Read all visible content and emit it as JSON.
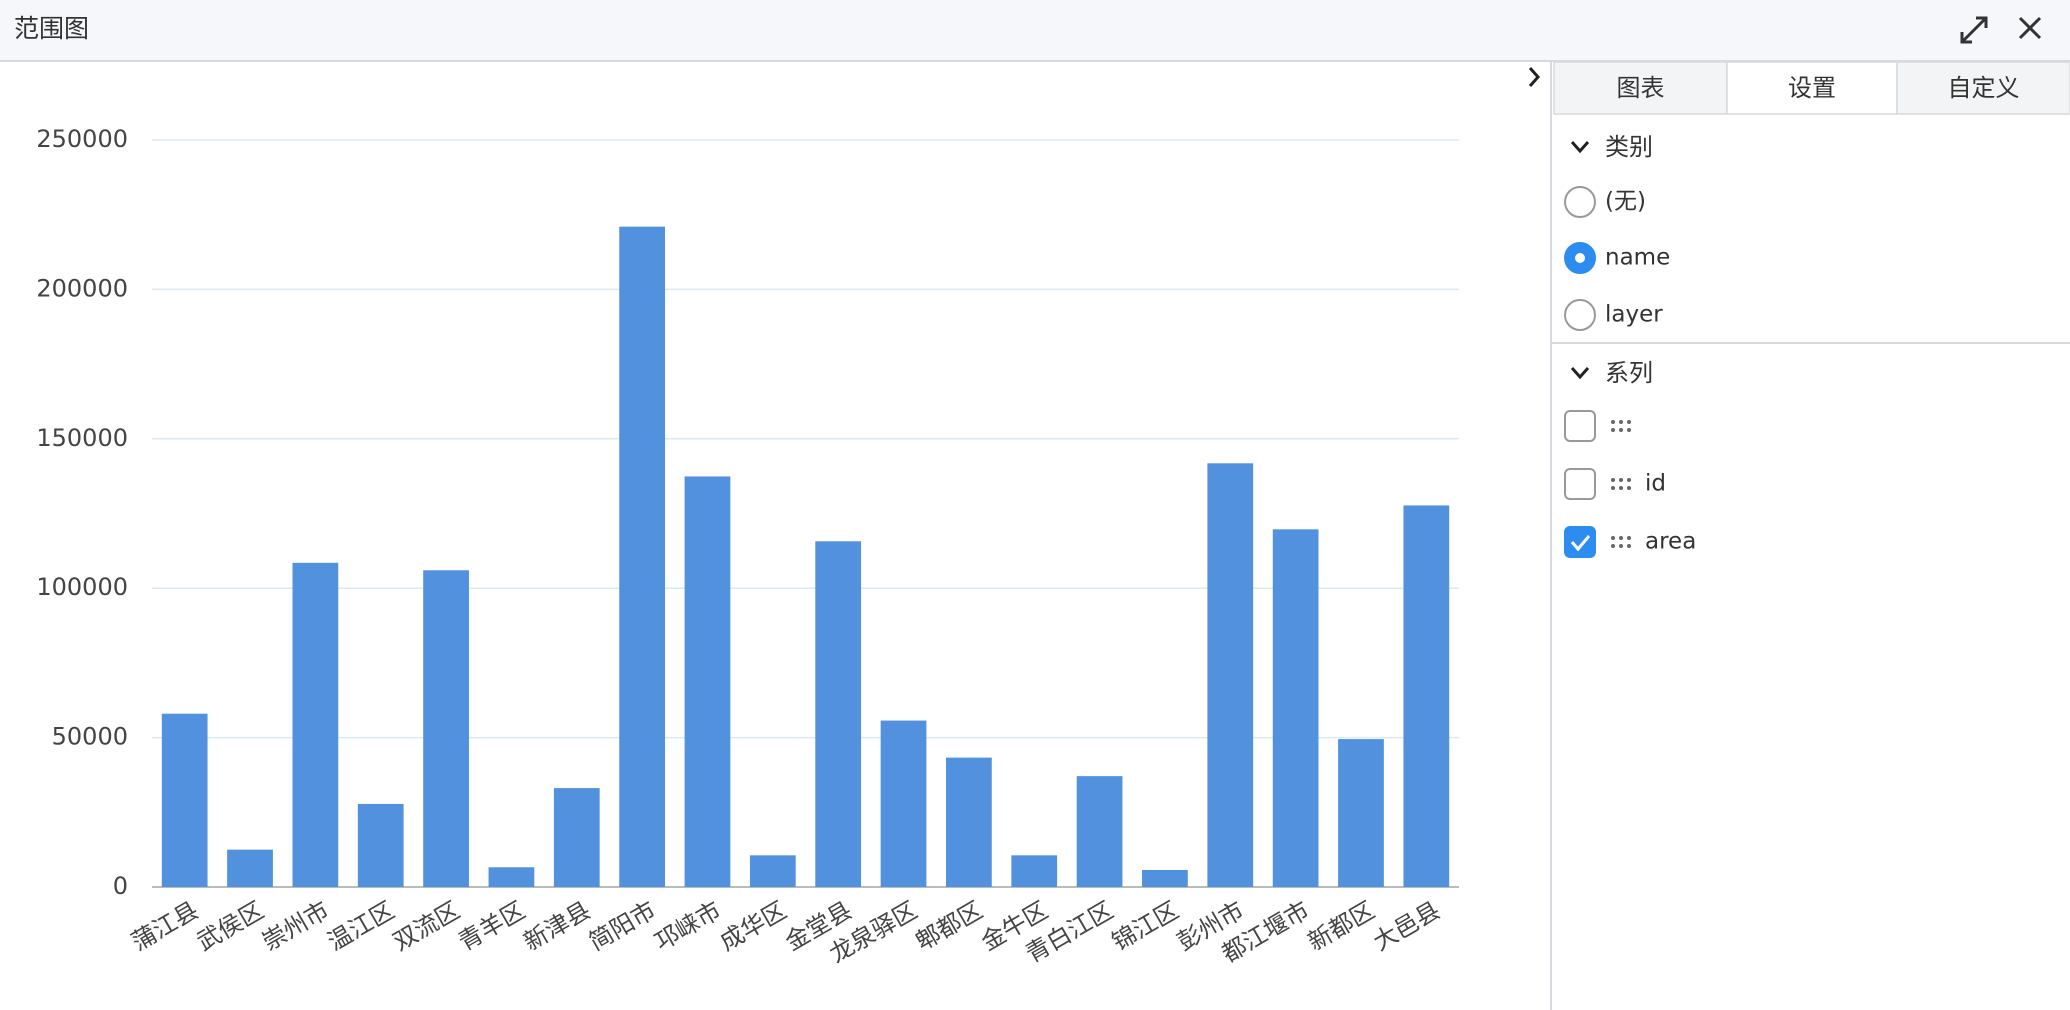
{
  "chart_data": {
    "type": "bar",
    "title": "范围图",
    "categories": [
      "蒲江县",
      "武侯区",
      "崇州市",
      "温江区",
      "双流区",
      "青羊区",
      "新津县",
      "简阳市",
      "邛崃市",
      "成华区",
      "金堂县",
      "龙泉驿区",
      "郫都区",
      "金牛区",
      "青白江区",
      "锦江区",
      "彭州市",
      "都江堰市",
      "新都区",
      "大邑县"
    ],
    "values": [
      58000,
      12500,
      108500,
      27800,
      106000,
      6600,
      33100,
      221000,
      137400,
      10600,
      115700,
      55700,
      43300,
      10600,
      37100,
      5700,
      141800,
      119700,
      49500,
      127700
    ],
    "color": "#5191dd",
    "ylim": [
      0,
      250000
    ],
    "yticks": [
      0,
      50000,
      100000,
      150000,
      200000,
      250000
    ],
    "grid": true
  },
  "panel": {
    "tabs": [
      {
        "label": "图表",
        "active": false
      },
      {
        "label": "设置",
        "active": true
      },
      {
        "label": "自定义",
        "active": false
      }
    ],
    "category_section": {
      "title": "类别",
      "options": [
        {
          "label": "(无)",
          "checked": false
        },
        {
          "label": "name",
          "checked": true
        },
        {
          "label": "layer",
          "checked": false
        }
      ]
    },
    "series_section": {
      "title": "系列",
      "options": [
        {
          "label": "id",
          "checked": false
        },
        {
          "label": "area",
          "checked": true
        }
      ]
    }
  }
}
